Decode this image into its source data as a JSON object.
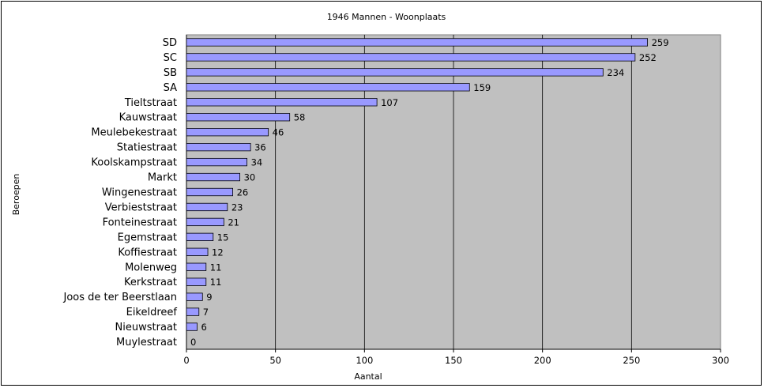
{
  "chart_data": {
    "type": "bar",
    "orientation": "horizontal",
    "title": "1946 Mannen -  Woonplaats",
    "xlabel": "Aantal",
    "ylabel": "Beroepen",
    "categories": [
      "SD",
      "SC",
      "SB",
      "SA",
      "Tieltstraat",
      "Kauwstraat",
      "Meulebekestraat",
      "Statiestraat",
      "Koolskampstraat",
      "Markt",
      "Wingenestraat",
      "Verbieststraat",
      "Fonteinestraat",
      "Egemstraat",
      "Koffiestraat",
      "Molenweg",
      "Kerkstraat",
      "Joos de ter Beerstlaan",
      "Eikeldreef",
      "Nieuwstraat",
      "Muylestraat"
    ],
    "values": [
      259,
      252,
      234,
      159,
      107,
      58,
      46,
      36,
      34,
      30,
      26,
      23,
      21,
      15,
      12,
      11,
      11,
      9,
      7,
      6,
      0
    ],
    "xlim": [
      0,
      300
    ],
    "xticks": [
      0,
      50,
      100,
      150,
      200,
      250,
      300
    ],
    "grid": "vertical",
    "legend": "none",
    "colors": {
      "plot_background": "#c0c0c0",
      "bar_fill": "#9999ff",
      "bar_stroke": "#000000",
      "gridline": "#000000"
    }
  }
}
